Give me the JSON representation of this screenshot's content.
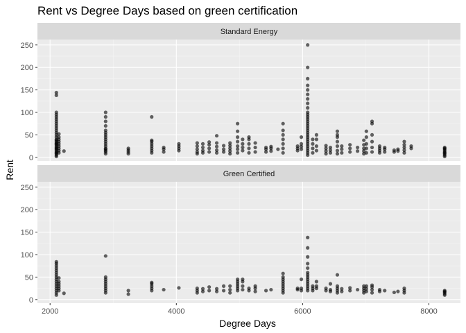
{
  "chart_data": {
    "type": "scatter",
    "title": "Rent vs Degree Days based on green certification",
    "xlabel": "Degree Days",
    "ylabel": "Rent",
    "xlim": [
      1800,
      8500
    ],
    "ylim": [
      -8,
      262
    ],
    "x_ticks": [
      2000,
      4000,
      6000,
      8000
    ],
    "y_ticks": [
      0,
      50,
      100,
      150,
      200,
      250
    ],
    "x_tick_labels": [
      "2000",
      "4000",
      "6000",
      "8000"
    ],
    "y_tick_labels": [
      "0",
      "50",
      "100",
      "150",
      "200",
      "250"
    ],
    "grid": true,
    "point_color": "#000000",
    "panel_background": "#ebebeb",
    "strip_background": "#d9d9d9",
    "panels": [
      {
        "label": "Standard Energy",
        "groups": [
          {
            "x": 2100,
            "y": [
              2,
              5,
              8,
              10,
              12,
              15,
              18,
              20,
              22,
              25,
              28,
              30,
              32,
              35,
              38,
              40,
              45,
              50,
              55,
              60,
              65,
              70,
              75,
              80,
              85,
              90,
              95,
              100,
              138,
              144
            ]
          },
          {
            "x": 2140,
            "y": [
              10,
              15,
              20,
              25,
              30,
              35,
              40,
              45,
              52
            ]
          },
          {
            "x": 2220,
            "y": [
              14
            ]
          },
          {
            "x": 2880,
            "y": [
              8,
              12,
              15,
              18,
              20,
              25,
              30,
              35,
              40,
              45,
              50,
              55,
              60,
              70,
              80,
              90,
              100
            ]
          },
          {
            "x": 3240,
            "y": [
              8,
              12,
              16,
              20
            ]
          },
          {
            "x": 3610,
            "y": [
              10,
              15,
              20,
              25,
              30,
              35,
              38,
              90
            ]
          },
          {
            "x": 3800,
            "y": [
              12,
              18,
              22
            ]
          },
          {
            "x": 4040,
            "y": [
              15,
              20,
              25,
              30
            ]
          },
          {
            "x": 4330,
            "y": [
              8,
              12,
              18,
              25,
              32
            ]
          },
          {
            "x": 4420,
            "y": [
              10,
              15,
              22,
              30
            ]
          },
          {
            "x": 4520,
            "y": [
              12,
              20,
              28,
              34
            ]
          },
          {
            "x": 4640,
            "y": [
              10,
              16,
              24,
              32,
              48
            ]
          },
          {
            "x": 4750,
            "y": [
              12,
              18,
              26
            ]
          },
          {
            "x": 4850,
            "y": [
              8,
              14,
              20,
              26,
              32
            ]
          },
          {
            "x": 4970,
            "y": [
              10,
              18,
              25,
              35,
              45,
              58,
              75
            ]
          },
          {
            "x": 5050,
            "y": [
              15,
              22,
              30,
              40
            ]
          },
          {
            "x": 5150,
            "y": [
              10,
              20,
              30,
              40,
              45
            ]
          },
          {
            "x": 5250,
            "y": [
              12,
              22,
              32
            ]
          },
          {
            "x": 5420,
            "y": [
              12,
              18,
              22
            ]
          },
          {
            "x": 5500,
            "y": [
              14,
              20,
              24
            ]
          },
          {
            "x": 5610,
            "y": [
              18
            ]
          },
          {
            "x": 5690,
            "y": [
              10,
              20,
              30,
              40,
              50,
              60,
              75
            ]
          },
          {
            "x": 5920,
            "y": [
              15,
              20,
              25
            ]
          },
          {
            "x": 5980,
            "y": [
              18,
              24,
              30,
              45
            ]
          },
          {
            "x": 6080,
            "y": [
              5,
              10,
              15,
              20,
              25,
              30,
              35,
              40,
              45,
              50,
              55,
              60,
              65,
              70,
              75,
              80,
              85,
              90,
              95,
              100,
              110,
              120,
              130,
              140,
              150,
              160,
              175,
              200,
              250
            ]
          },
          {
            "x": 6160,
            "y": [
              10,
              20,
              30,
              40
            ]
          },
          {
            "x": 6220,
            "y": [
              15,
              25,
              40,
              50
            ]
          },
          {
            "x": 6370,
            "y": [
              8,
              14,
              20,
              26
            ]
          },
          {
            "x": 6440,
            "y": [
              10,
              16,
              22
            ]
          },
          {
            "x": 6550,
            "y": [
              8,
              15,
              25,
              35,
              45,
              50,
              58
            ]
          },
          {
            "x": 6620,
            "y": [
              10,
              18,
              25
            ]
          },
          {
            "x": 6750,
            "y": [
              12,
              20,
              28
            ]
          },
          {
            "x": 6870,
            "y": [
              14,
              22
            ]
          },
          {
            "x": 6970,
            "y": [
              8,
              14,
              20,
              28,
              38
            ]
          },
          {
            "x": 7010,
            "y": [
              10,
              20,
              30,
              45,
              58
            ]
          },
          {
            "x": 7100,
            "y": [
              12,
              22,
              35,
              50,
              75,
              80
            ]
          },
          {
            "x": 7220,
            "y": [
              10,
              15,
              20,
              25
            ]
          },
          {
            "x": 7300,
            "y": [
              12,
              18,
              22
            ]
          },
          {
            "x": 7450,
            "y": [
              12,
              16
            ]
          },
          {
            "x": 7510,
            "y": [
              14,
              18
            ]
          },
          {
            "x": 7610,
            "y": [
              10,
              16,
              22,
              28,
              35
            ]
          },
          {
            "x": 7720,
            "y": [
              20,
              25
            ]
          },
          {
            "x": 8250,
            "y": [
              2,
              5,
              8,
              10,
              12,
              15,
              18,
              20,
              22
            ]
          }
        ]
      },
      {
        "label": "Green Certified",
        "groups": [
          {
            "x": 2100,
            "y": [
              10,
              15,
              20,
              25,
              30,
              35,
              40,
              45,
              50,
              55,
              60,
              65,
              70,
              75,
              80,
              84
            ]
          },
          {
            "x": 2140,
            "y": [
              20,
              25,
              30,
              35,
              40,
              48
            ]
          },
          {
            "x": 2220,
            "y": [
              14
            ]
          },
          {
            "x": 2880,
            "y": [
              15,
              20,
              25,
              30,
              35,
              40,
              45,
              50,
              97
            ]
          },
          {
            "x": 3240,
            "y": [
              12,
              20
            ]
          },
          {
            "x": 3610,
            "y": [
              20,
              25,
              30,
              35,
              38
            ]
          },
          {
            "x": 3800,
            "y": [
              22
            ]
          },
          {
            "x": 4040,
            "y": [
              26
            ]
          },
          {
            "x": 4330,
            "y": [
              15,
              20,
              25
            ]
          },
          {
            "x": 4420,
            "y": [
              18,
              24
            ]
          },
          {
            "x": 4520,
            "y": [
              20,
              28
            ]
          },
          {
            "x": 4640,
            "y": [
              18,
              24
            ]
          },
          {
            "x": 4750,
            "y": [
              20,
              30
            ]
          },
          {
            "x": 4850,
            "y": [
              15,
              22,
              30
            ]
          },
          {
            "x": 4970,
            "y": [
              20,
              25,
              30,
              35,
              40,
              45
            ]
          },
          {
            "x": 5050,
            "y": [
              22,
              30,
              40,
              45
            ]
          },
          {
            "x": 5150,
            "y": [
              20,
              25
            ]
          },
          {
            "x": 5250,
            "y": [
              18,
              25,
              30
            ]
          },
          {
            "x": 5420,
            "y": [
              20
            ]
          },
          {
            "x": 5500,
            "y": [
              22
            ]
          },
          {
            "x": 5690,
            "y": [
              15,
              20,
              25,
              30,
              35,
              40,
              45,
              50,
              58
            ]
          },
          {
            "x": 5920,
            "y": [
              22,
              25
            ]
          },
          {
            "x": 5980,
            "y": [
              20,
              25,
              45
            ]
          },
          {
            "x": 6080,
            "y": [
              20,
              25,
              30,
              35,
              40,
              45,
              50,
              55,
              60,
              70,
              80,
              95,
              115,
              138
            ]
          },
          {
            "x": 6160,
            "y": [
              20,
              25,
              30
            ]
          },
          {
            "x": 6220,
            "y": [
              25,
              30,
              40
            ]
          },
          {
            "x": 6370,
            "y": [
              20,
              25
            ]
          },
          {
            "x": 6440,
            "y": [
              18,
              22,
              35
            ]
          },
          {
            "x": 6550,
            "y": [
              15,
              20,
              25,
              30,
              55
            ]
          },
          {
            "x": 6620,
            "y": [
              18,
              24
            ]
          },
          {
            "x": 6750,
            "y": [
              20,
              26
            ]
          },
          {
            "x": 6870,
            "y": [
              22
            ]
          },
          {
            "x": 6970,
            "y": [
              15,
              20,
              25,
              30
            ]
          },
          {
            "x": 7010,
            "y": [
              18,
              24,
              30
            ]
          },
          {
            "x": 7100,
            "y": [
              15,
              22,
              28,
              32
            ]
          },
          {
            "x": 7220,
            "y": [
              18,
              22
            ]
          },
          {
            "x": 7300,
            "y": [
              20
            ]
          },
          {
            "x": 7450,
            "y": [
              16
            ]
          },
          {
            "x": 7510,
            "y": [
              18
            ]
          },
          {
            "x": 7610,
            "y": [
              15,
              20,
              25
            ]
          },
          {
            "x": 8250,
            "y": [
              10,
              13,
              16,
              18,
              20
            ]
          }
        ]
      }
    ]
  }
}
